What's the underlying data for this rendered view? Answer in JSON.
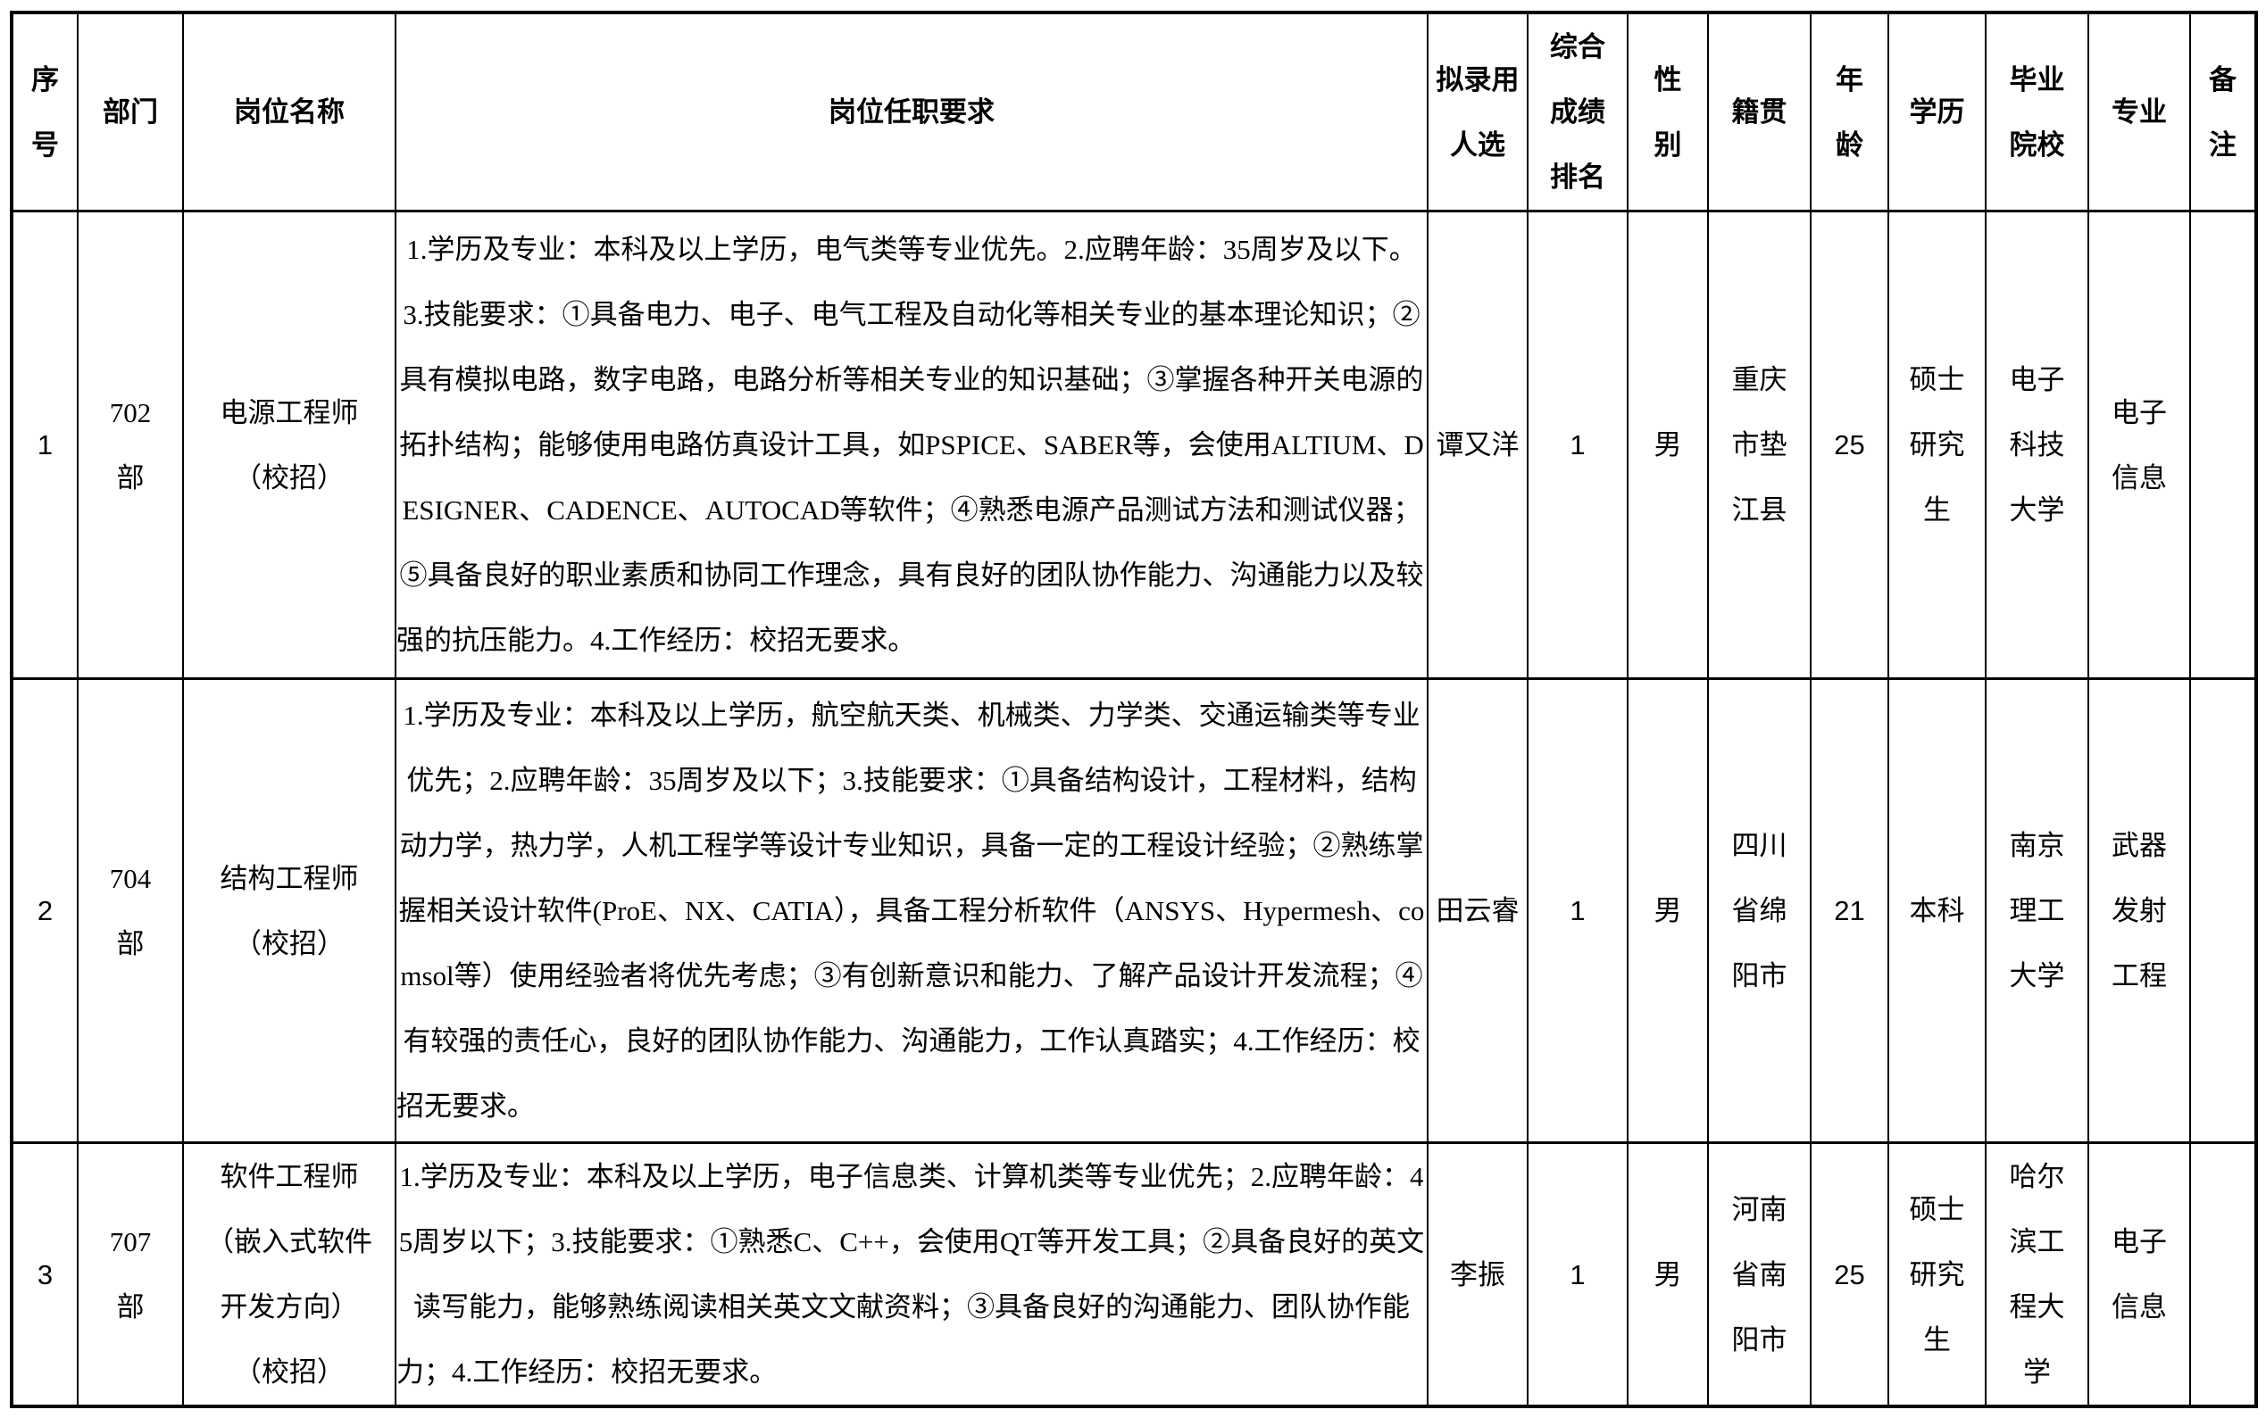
{
  "table": {
    "headers": {
      "index": "序\n号",
      "department": "部门",
      "position": "岗位名称",
      "requirements": "岗位任职要求",
      "candidate": "拟录用\n人选",
      "rank": "综合\n成绩\n排名",
      "gender": "性\n别",
      "hometown": "籍贯",
      "age": "年\n龄",
      "education": "学历",
      "school": "毕业\n院校",
      "major": "专业",
      "remark": "备\n注"
    },
    "rows": [
      {
        "index": "1",
        "department": "702\n部",
        "position": "电源工程师\n（校招）",
        "requirements": "1.学历及专业：本科及以上学历，电气类等专业优先。2.应聘年龄：35周岁及以下。3.技能要求：①具备电力、电子、电气工程及自动化等相关专业的基本理论知识；②具有模拟电路，数字电路，电路分析等相关专业的知识基础；③掌握各种开关电源的拓扑结构；能够使用电路仿真设计工具，如PSPICE、SABER等，会使用ALTIUM、DESIGNER、CADENCE、AUTOCAD等软件；④熟悉电源产品测试方法和测试仪器；⑤具备良好的职业素质和协同工作理念，具有良好的团队协作能力、沟通能力以及较强的抗压能力。4.工作经历：校招无要求。",
        "candidate": "谭又洋",
        "rank": "1",
        "gender": "男",
        "hometown": "重庆\n市垫\n江县",
        "age": "25",
        "education": "硕士\n研究\n生",
        "school": "电子\n科技\n大学",
        "major": "电子\n信息",
        "remark": ""
      },
      {
        "index": "2",
        "department": "704\n部",
        "position": "结构工程师\n（校招）",
        "requirements": "1.学历及专业：本科及以上学历，航空航天类、机械类、力学类、交通运输类等专业优先；2.应聘年龄：35周岁及以下；3.技能要求：①具备结构设计，工程材料，结构动力学，热力学，人机工程学等设计专业知识，具备一定的工程设计经验；②熟练掌握相关设计软件(ProE、NX、CATIA），具备工程分析软件（ANSYS、Hypermesh、comsol等）使用经验者将优先考虑；③有创新意识和能力、了解产品设计开发流程；④有较强的责任心，良好的团队协作能力、沟通能力，工作认真踏实；4.工作经历：校招无要求。",
        "candidate": "田云睿",
        "rank": "1",
        "gender": "男",
        "hometown": "四川\n省绵\n阳市",
        "age": "21",
        "education": "本科",
        "school": "南京\n理工\n大学",
        "major": "武器\n发射\n工程",
        "remark": ""
      },
      {
        "index": "3",
        "department": "707\n部",
        "position": "软件工程师\n（嵌入式软件\n开发方向）\n（校招）",
        "requirements": "1.学历及专业：本科及以上学历，电子信息类、计算机类等专业优先；2.应聘年龄：45周岁以下；3.技能要求：①熟悉C、C++，会使用QT等开发工具；②具备良好的英文读写能力，能够熟练阅读相关英文文献资料；③具备良好的沟通能力、团队协作能力；4.工作经历：校招无要求。",
        "candidate": "李振",
        "rank": "1",
        "gender": "男",
        "hometown": "河南\n省南\n阳市",
        "age": "25",
        "education": "硕士\n研究\n生",
        "school": "哈尔\n滨工\n程大\n学",
        "major": "电子\n信息",
        "remark": ""
      }
    ]
  }
}
